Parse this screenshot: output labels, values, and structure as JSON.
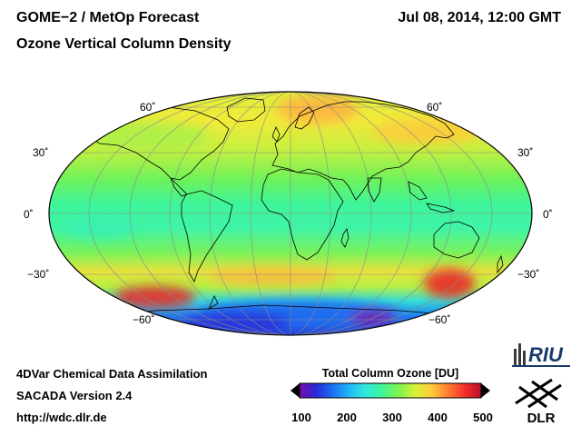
{
  "header": {
    "title": "GOME−2 / MetOp Forecast",
    "subtitle": "Ozone Vertical Column Density",
    "datetime": "Jul 08, 2014, 12:00 GMT"
  },
  "map": {
    "projection": "mollweide",
    "latitude_labels": {
      "n60": "60˚",
      "n30": "30˚",
      "eq": "0˚",
      "s30": "−30˚",
      "s60": "−60˚"
    }
  },
  "colorbar": {
    "title": "Total Column Ozone [DU]",
    "ticks": [
      "100",
      "200",
      "300",
      "400",
      "500"
    ],
    "colors": [
      "#7a0aa8",
      "#2a2ad8",
      "#1a6ef0",
      "#22b4f8",
      "#30e8e0",
      "#3ef59a",
      "#80f34c",
      "#dcf03a",
      "#ffc83c",
      "#ff7a2e",
      "#f3302a",
      "#b8102a"
    ]
  },
  "footer": {
    "line1": "4DVar Chemical Data Assimilation",
    "line2": "SACADA Version 2.4",
    "line3": "http://wdc.dlr.de"
  },
  "logos": {
    "riu": "RIU",
    "dlr": "DLR"
  }
}
